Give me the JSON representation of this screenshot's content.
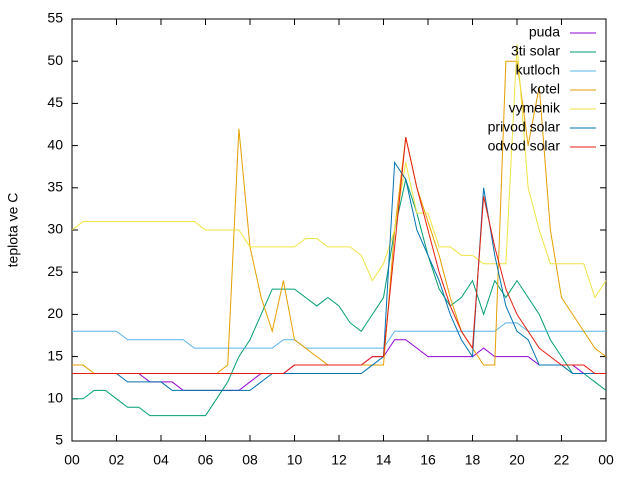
{
  "chart_data": {
    "type": "line",
    "ylabel": "teplota ve C",
    "x": [
      0,
      0.5,
      1,
      1.5,
      2,
      2.5,
      3,
      3.5,
      4,
      4.5,
      5,
      5.5,
      6,
      6.5,
      7,
      7.5,
      8,
      8.5,
      9,
      9.5,
      10,
      10.5,
      11,
      11.5,
      12,
      12.5,
      13,
      13.5,
      14,
      14.5,
      15,
      15.5,
      16,
      16.5,
      17,
      17.5,
      18,
      18.5,
      19,
      19.5,
      20,
      20.5,
      21,
      21.5,
      22,
      22.5,
      23,
      23.5,
      24
    ],
    "xlim": [
      0,
      24
    ],
    "xticks": [
      {
        "value": 0,
        "label": "00"
      },
      {
        "value": 2,
        "label": "02"
      },
      {
        "value": 4,
        "label": "04"
      },
      {
        "value": 6,
        "label": "06"
      },
      {
        "value": 8,
        "label": "08"
      },
      10,
      12,
      14,
      16,
      18,
      20,
      22,
      {
        "value": 24,
        "label": "00"
      }
    ],
    "ylim": [
      5,
      55
    ],
    "yticks": [
      5,
      10,
      15,
      20,
      25,
      30,
      35,
      40,
      45,
      50,
      55
    ],
    "legend": "top-right",
    "series": [
      {
        "name": "puda",
        "color": "#9400d3",
        "values": [
          13,
          13,
          13,
          13,
          13,
          13,
          13,
          12,
          12,
          12,
          11,
          11,
          11,
          11,
          11,
          11,
          12,
          13,
          13,
          13,
          14,
          14,
          14,
          14,
          14,
          14,
          14,
          15,
          15,
          17,
          17,
          16,
          15,
          15,
          15,
          15,
          15,
          16,
          15,
          15,
          15,
          15,
          14,
          14,
          14,
          14,
          13,
          13,
          13
        ]
      },
      {
        "name": "3ti solar",
        "color": "#009e73",
        "values": [
          10,
          10,
          11,
          11,
          10,
          9,
          9,
          8,
          8,
          8,
          8,
          8,
          8,
          10,
          12,
          15,
          17,
          20,
          23,
          23,
          23,
          22,
          21,
          22,
          21,
          19,
          18,
          20,
          22,
          30,
          36,
          32,
          27,
          23,
          21,
          22,
          24,
          20,
          24,
          22,
          24,
          22,
          20,
          17,
          15,
          13,
          13,
          12,
          11
        ]
      },
      {
        "name": "kutloch",
        "color": "#56b4e9",
        "values": [
          18,
          18,
          18,
          18,
          18,
          17,
          17,
          17,
          17,
          17,
          17,
          16,
          16,
          16,
          16,
          16,
          16,
          16,
          16,
          17,
          17,
          16,
          16,
          16,
          16,
          16,
          16,
          16,
          16,
          18,
          18,
          18,
          18,
          18,
          18,
          18,
          18,
          18,
          18,
          19,
          19,
          18,
          18,
          18,
          18,
          18,
          18,
          18,
          18
        ]
      },
      {
        "name": "kotel",
        "color": "#e69f00",
        "values": [
          14,
          14,
          13,
          13,
          13,
          13,
          13,
          13,
          13,
          13,
          13,
          13,
          13,
          13,
          14,
          42,
          28,
          22,
          18,
          24,
          17,
          16,
          15,
          14,
          14,
          14,
          14,
          14,
          14,
          30,
          41,
          35,
          31,
          27,
          22,
          18,
          16,
          14,
          14,
          50,
          50,
          40,
          47,
          30,
          22,
          20,
          18,
          16,
          15
        ]
      },
      {
        "name": "vymenik",
        "color": "#f0e442",
        "values": [
          30,
          31,
          31,
          31,
          31,
          31,
          31,
          31,
          31,
          31,
          31,
          31,
          30,
          30,
          30,
          30,
          28,
          28,
          28,
          28,
          28,
          29,
          29,
          28,
          28,
          28,
          27,
          24,
          26,
          30,
          38,
          32,
          32,
          28,
          28,
          27,
          27,
          26,
          26,
          26,
          52,
          35,
          30,
          26,
          26,
          26,
          26,
          22,
          24
        ]
      },
      {
        "name": "privod solar",
        "color": "#0072b2",
        "values": [
          13,
          13,
          13,
          13,
          13,
          12,
          12,
          12,
          12,
          11,
          11,
          11,
          11,
          11,
          11,
          11,
          11,
          12,
          13,
          13,
          13,
          13,
          13,
          13,
          13,
          13,
          13,
          14,
          15,
          38,
          36,
          30,
          27,
          24,
          20,
          17,
          15,
          35,
          27,
          21,
          18,
          17,
          14,
          14,
          14,
          13,
          13,
          13,
          13
        ]
      },
      {
        "name": "odvod solar",
        "color": "#e51e10",
        "values": [
          13,
          13,
          13,
          13,
          13,
          13,
          13,
          13,
          13,
          13,
          13,
          13,
          13,
          13,
          13,
          13,
          13,
          13,
          13,
          13,
          14,
          14,
          14,
          14,
          14,
          14,
          14,
          15,
          15,
          28,
          41,
          35,
          30,
          25,
          21,
          18,
          16,
          34,
          28,
          23,
          20,
          18,
          16,
          15,
          14,
          14,
          14,
          13,
          13
        ]
      }
    ]
  }
}
